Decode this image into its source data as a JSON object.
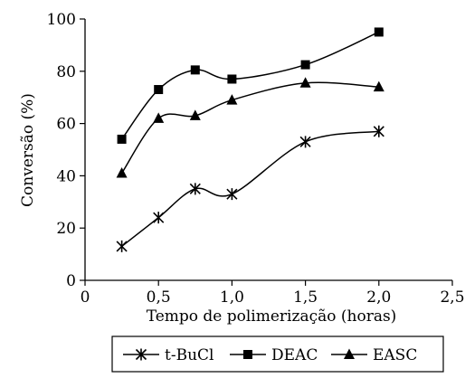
{
  "chart_data": {
    "type": "line",
    "title": "",
    "xlabel": "Tempo de polimerização (horas)",
    "ylabel": "Conversão (%)",
    "xlim": [
      0,
      2.5
    ],
    "ylim": [
      0,
      100
    ],
    "xticks": [
      0,
      0.5,
      1,
      1.5,
      2,
      2.5
    ],
    "xtick_labels": [
      "0",
      "0,5",
      "1,0",
      "1,5",
      "2,0",
      "2,5"
    ],
    "yticks": [
      0,
      20,
      40,
      60,
      80,
      100
    ],
    "ytick_labels": [
      "0",
      "20",
      "40",
      "60",
      "80",
      "100"
    ],
    "grid": false,
    "legend_position": "bottom",
    "series": [
      {
        "name": "t-BuCl",
        "marker": "asterisk",
        "x": [
          0.25,
          0.5,
          0.75,
          1.0,
          1.5,
          2.0
        ],
        "y": [
          13,
          24,
          35,
          33,
          53,
          57
        ]
      },
      {
        "name": "DEAC",
        "marker": "square",
        "x": [
          0.25,
          0.5,
          0.75,
          1.0,
          1.5,
          2.0
        ],
        "y": [
          54,
          73,
          80.5,
          77,
          82.5,
          95
        ]
      },
      {
        "name": "EASC",
        "marker": "triangle",
        "x": [
          0.25,
          0.5,
          0.75,
          1.0,
          1.5,
          2.0
        ],
        "y": [
          41,
          62,
          63,
          69,
          75.5,
          74
        ]
      }
    ]
  }
}
